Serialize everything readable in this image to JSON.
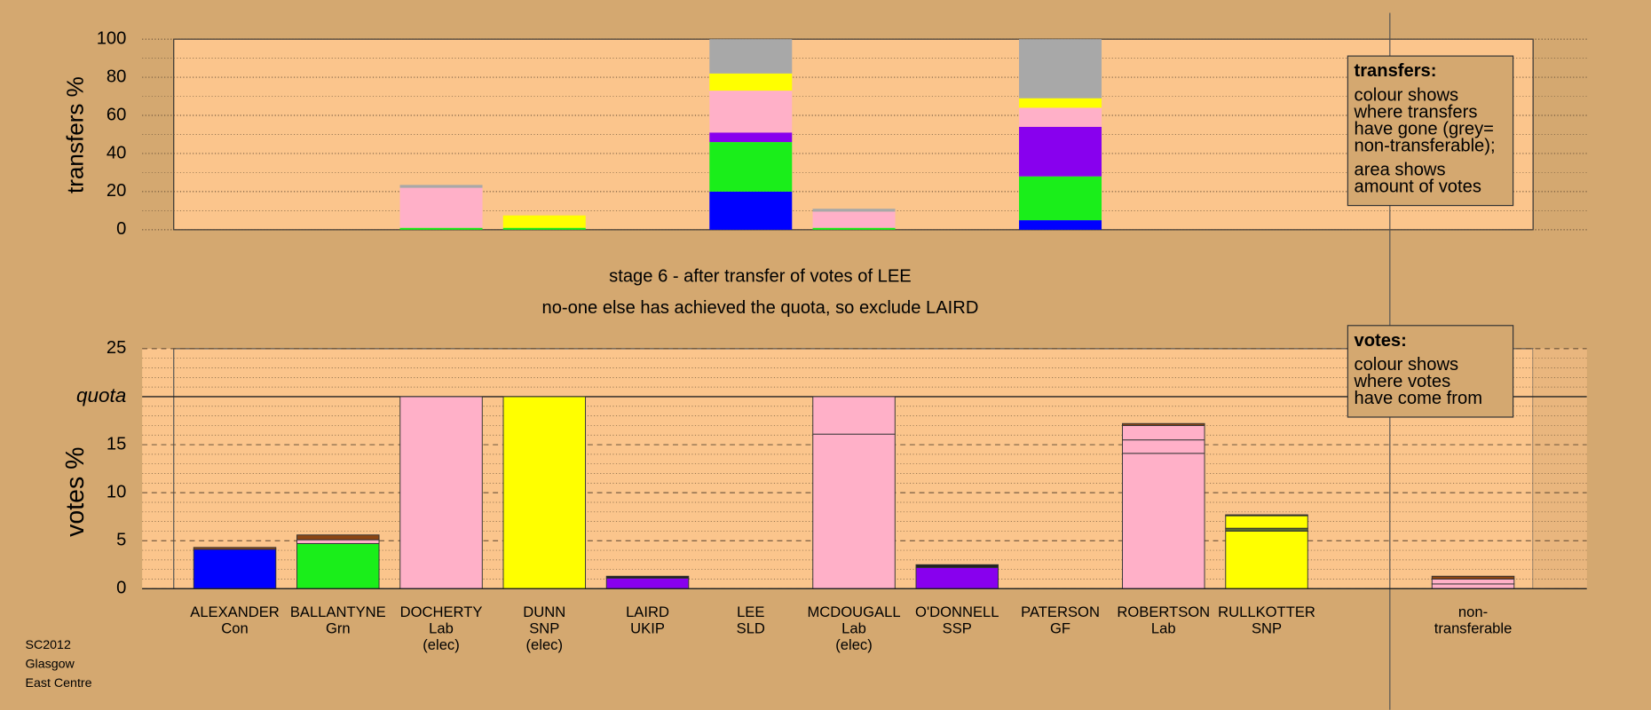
{
  "chart_data": [
    {
      "type": "bar",
      "stacked": true,
      "ylabel": "transfers %",
      "categories": [
        [
          "ALEXANDER",
          "Con"
        ],
        [
          "BALLANTYNE",
          "Grn"
        ],
        [
          "DOCHERTY",
          "Lab",
          "(elec)"
        ],
        [
          "DUNN",
          "SNP",
          "(elec)"
        ],
        [
          "LAIRD",
          "UKIP"
        ],
        [
          "LEE",
          "SLD"
        ],
        [
          "MCDOUGALL",
          "Lab",
          "(elec)"
        ],
        [
          "O'DONNELL",
          "SSP"
        ],
        [
          "PATERSON",
          "GF"
        ],
        [
          "ROBERTSON",
          "Lab"
        ],
        [
          "RULLKOTTER",
          "SNP"
        ],
        null,
        [
          "non-",
          "transferable"
        ]
      ],
      "ylim": [
        0,
        100
      ],
      "yticks": [
        0,
        20,
        40,
        60,
        80,
        100
      ],
      "grid": true,
      "series": [
        {
          "color": "#0000ff",
          "values": [
            null,
            null,
            null,
            null,
            null,
            20,
            null,
            null,
            5,
            null,
            null,
            null,
            null
          ]
        },
        {
          "color": "#1aee1a",
          "values": [
            null,
            null,
            1,
            1,
            null,
            26,
            1,
            null,
            23,
            null,
            null,
            null,
            null
          ]
        },
        {
          "color": "#8800ee",
          "values": [
            null,
            null,
            null,
            null,
            null,
            5,
            null,
            null,
            26,
            null,
            null,
            null,
            null
          ]
        },
        {
          "color": "#ffb0c8",
          "values": [
            null,
            null,
            21,
            null,
            null,
            22,
            8.5,
            null,
            10,
            null,
            null,
            null,
            null
          ]
        },
        {
          "color": "#ffff00",
          "values": [
            null,
            null,
            null,
            6.5,
            null,
            9,
            null,
            null,
            5,
            null,
            null,
            null,
            null
          ]
        },
        {
          "color": "#a8a8a8",
          "values": [
            null,
            null,
            1.5,
            null,
            null,
            18,
            1.5,
            null,
            31,
            null,
            null,
            null,
            null
          ]
        }
      ],
      "legend": {
        "title": "transfers:",
        "lines": [
          "colour shows",
          "where transfers",
          "have gone (grey=",
          "non-transferable);"
        ],
        "lines2": [
          "area shows",
          "amount of votes"
        ]
      }
    },
    {
      "type": "bar",
      "stacked": true,
      "ylabel": "votes %",
      "title": "stage 6 - after transfer of votes of LEE",
      "subtitle": "no-one else has achieved the quota, so exclude LAIRD",
      "ylim": [
        0,
        25
      ],
      "yticks": [
        0,
        5,
        10,
        15,
        {
          "value": 20,
          "label": "quota"
        },
        25
      ],
      "grid": true,
      "series": [
        {
          "values": [
            4.1,
            4.7,
            20,
            20,
            1.1,
            0,
            16.1,
            2.2,
            0,
            14.1,
            6.0,
            null,
            0.5
          ],
          "colors": [
            "#0000ff",
            "#1aee1a",
            "#ffb0c8",
            "#ffff00",
            "#8800ee",
            "#ffb0c8",
            "#ffb0c8",
            "#8800ee",
            "#1aee1a",
            "#ffb0c8",
            "#ffff00",
            null,
            "#ffb0c8"
          ]
        },
        {
          "values": [
            0.2,
            0.4,
            null,
            null,
            0.2,
            null,
            3.9,
            0.3,
            null,
            1.4,
            0.3,
            null,
            0.5
          ],
          "colors": [
            "#8b4513",
            "#ffb0c8",
            null,
            null,
            "#222222",
            null,
            "#ffb0c8",
            "#222222",
            null,
            "#ffb0c8",
            "#556b2f",
            null,
            "#ffb0c8"
          ]
        },
        {
          "values": [
            null,
            0.5,
            null,
            null,
            null,
            null,
            null,
            null,
            null,
            1.5,
            1.3,
            null,
            0.3
          ],
          "colors": [
            null,
            "#8b4513",
            null,
            null,
            null,
            null,
            null,
            null,
            null,
            "#ffb0c8",
            "#ffff00",
            null,
            "#8b4513"
          ]
        },
        {
          "values": [
            null,
            null,
            null,
            null,
            null,
            null,
            null,
            null,
            null,
            0.2,
            0.1,
            null,
            null
          ],
          "colors": [
            null,
            null,
            null,
            null,
            null,
            null,
            null,
            null,
            null,
            "#8b4513",
            "#222222",
            null,
            null
          ]
        }
      ],
      "legend": {
        "title": "votes:",
        "lines": [
          "colour shows",
          "where votes",
          "have come from"
        ]
      }
    }
  ],
  "footer": [
    "SC2012",
    "Glasgow",
    "East Centre"
  ]
}
